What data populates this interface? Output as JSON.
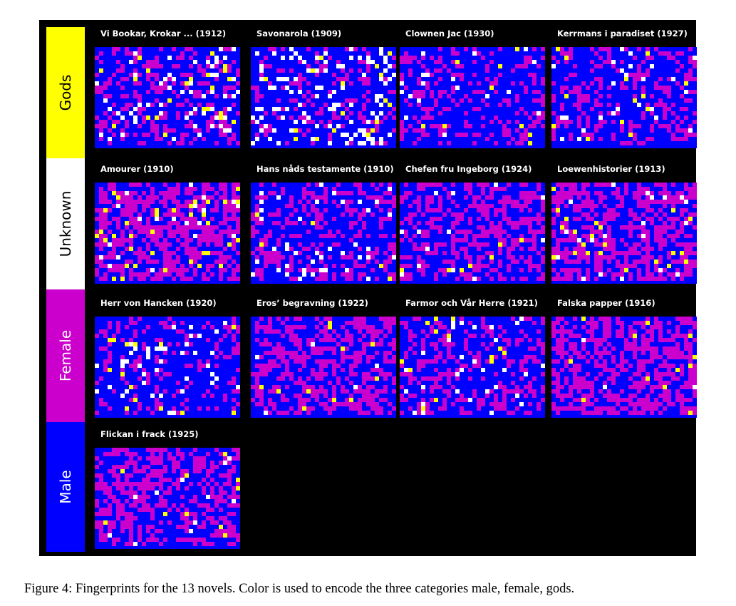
{
  "figure": {
    "legend": [
      {
        "label": "Gods",
        "color": "#ffff00",
        "text_color": "#000000"
      },
      {
        "label": "Unknown",
        "color": "#ffffff",
        "text_color": "#000000"
      },
      {
        "label": "Female",
        "color": "#cc00cc",
        "text_color": "#ffffff"
      },
      {
        "label": "Male",
        "color": "#0000ff",
        "text_color": "#ffffff"
      }
    ],
    "category_colors": {
      "male": "#0000ff",
      "female": "#cc00cc",
      "gods": "#ffff00",
      "unknown": "#ffffff"
    },
    "novels": [
      {
        "title": "Vi Bookar, Krokar ... (1912)",
        "group": "Gods",
        "seed": 11,
        "mix": [
          0.62,
          0.28,
          0.08,
          0.02
        ]
      },
      {
        "title": "Savonarola (1909)",
        "group": "Gods",
        "seed": 23,
        "mix": [
          0.66,
          0.18,
          0.14,
          0.02
        ]
      },
      {
        "title": "Clownen Jac (1930)",
        "group": "Gods",
        "seed": 37,
        "mix": [
          0.7,
          0.27,
          0.02,
          0.01
        ]
      },
      {
        "title": "Kerrmans i paradiset (1927)",
        "group": "Gods",
        "seed": 41,
        "mix": [
          0.66,
          0.3,
          0.03,
          0.01
        ]
      },
      {
        "title": "Amourer (1910)",
        "group": "Unknown",
        "seed": 53,
        "mix": [
          0.38,
          0.54,
          0.02,
          0.06
        ]
      },
      {
        "title": "Hans nåds testamente (1910)",
        "group": "Unknown",
        "seed": 67,
        "mix": [
          0.62,
          0.33,
          0.04,
          0.01
        ]
      },
      {
        "title": "Chefen fru Ingeborg (1924)",
        "group": "Unknown",
        "seed": 71,
        "mix": [
          0.56,
          0.42,
          0.01,
          0.01
        ]
      },
      {
        "title": "Loewenhistorier (1913)",
        "group": "Unknown",
        "seed": 83,
        "mix": [
          0.44,
          0.5,
          0.03,
          0.03
        ]
      },
      {
        "title": "Herr von Hancken (1920)",
        "group": "Female",
        "seed": 97,
        "mix": [
          0.74,
          0.2,
          0.05,
          0.01
        ]
      },
      {
        "title": "Eros’ begravning (1922)",
        "group": "Female",
        "seed": 101,
        "mix": [
          0.5,
          0.48,
          0.01,
          0.01
        ]
      },
      {
        "title": "Farmor och Vår Herre (1921)",
        "group": "Female",
        "seed": 113,
        "mix": [
          0.64,
          0.3,
          0.05,
          0.01
        ]
      },
      {
        "title": "Falska papper (1916)",
        "group": "Female",
        "seed": 127,
        "mix": [
          0.42,
          0.56,
          0.01,
          0.01
        ]
      },
      {
        "title": "Flickan i frack (1925)",
        "group": "Male",
        "seed": 131,
        "mix": [
          0.52,
          0.44,
          0.02,
          0.02
        ]
      }
    ]
  },
  "caption": "Figure 4: Fingerprints for the 13 novels. Color is used to encode the three categories male, female, gods."
}
